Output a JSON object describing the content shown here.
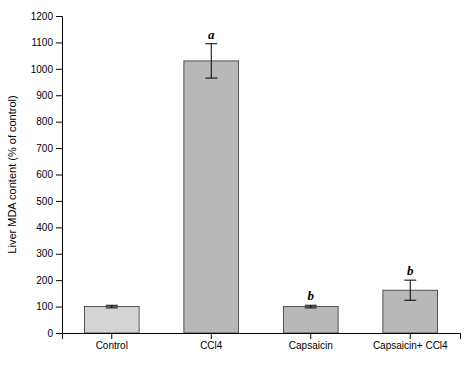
{
  "chart_data": {
    "type": "bar",
    "categories": [
      "Control",
      "CCl4",
      "Capsaicin",
      "Capsaicin+ CCl4"
    ],
    "values": [
      100,
      1030,
      100,
      162
    ],
    "errors": [
      5,
      65,
      5,
      38
    ],
    "annotations": [
      null,
      "a",
      "b",
      "b"
    ],
    "colors": [
      "#d4d4d4",
      "#b8b8b8",
      "#b8b8b8",
      "#b8b8b8"
    ],
    "ylabel": "Liver MDA content (% of control)",
    "ylim": [
      0,
      1200
    ],
    "yticks": [
      0,
      100,
      200,
      300,
      400,
      500,
      600,
      700,
      800,
      900,
      1000,
      1100,
      1200
    ],
    "grid": false
  }
}
